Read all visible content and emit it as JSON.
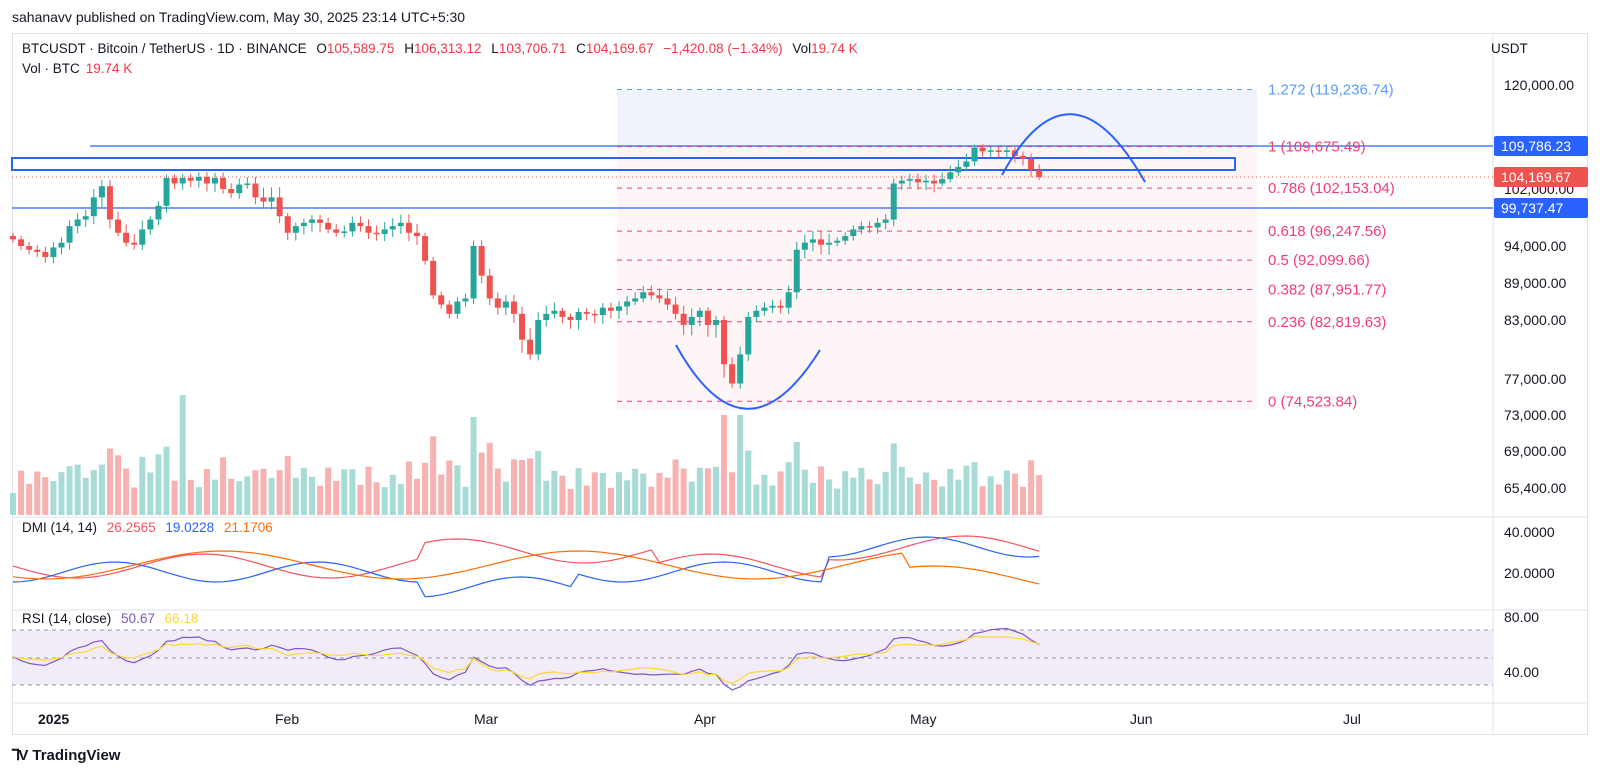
{
  "publisher": "sahanavv published on TradingView.com, May 30, 2025 23:14 UTC+5:30",
  "header": {
    "symbol": "BTCUSDT · Bitcoin / TetherUS · 1D · BINANCE",
    "o_label": "O",
    "o": "105,589.75",
    "h_label": "H",
    "h": "106,313.12",
    "l_label": "L",
    "l": "103,706.71",
    "c_label": "C",
    "c": "104,169.67",
    "change": "−1,420.08 (−1.34%)",
    "vol_label": "Vol",
    "vol": "19.74 K",
    "vol_line_label": "Vol · BTC",
    "vol_line_value": "19.74 K",
    "currency": "USDT"
  },
  "dmi": {
    "label": "DMI (14, 14)",
    "v1": "26.2565",
    "v2": "19.0228",
    "v3": "21.1706"
  },
  "rsi": {
    "label": "RSI (14, close)",
    "v1": "50.67",
    "v2": "66.18"
  },
  "brand": "TradingView",
  "colors": {
    "up": "#26a69a",
    "down": "#ef5350",
    "fib": "#f23d75",
    "fib_top": "#5b9cf6",
    "line_blue": "#2962ff",
    "dmi_pos": "#f7525f",
    "dmi_neg": "#2962ff",
    "dmi_adx": "#ff6d00",
    "rsi": "#7e57c2",
    "rsi_ma": "#fdd835"
  },
  "chart_data": {
    "type": "candlestick",
    "x_axis_labels": [
      "2025",
      "Feb",
      "Mar",
      "Apr",
      "May",
      "Jun",
      "Jul"
    ],
    "y_axis_labels": [
      "120,000.00",
      "102,000.00",
      "94,000.00",
      "89,000.00",
      "83,000.00",
      "77,000.00",
      "73,000.00",
      "69,000.00",
      "65,400.00"
    ],
    "price_badges": [
      {
        "value": "109,786.23",
        "kind": "line"
      },
      {
        "value": "104,169.67",
        "kind": "last"
      },
      {
        "value": "99,737.47",
        "kind": "line"
      }
    ],
    "horizontal_lines": [
      109786.23,
      99737.47
    ],
    "resistance_zone": [
      104600,
      107000
    ],
    "fib_levels": [
      {
        "label": "1.272 (119,236.74)",
        "price": 119236.74
      },
      {
        "label": "1 (109,675.49)",
        "price": 109675.49
      },
      {
        "label": "0.786 (102,153.04)",
        "price": 102153.04
      },
      {
        "label": "0.618 (96,247.56)",
        "price": 96247.56
      },
      {
        "label": "0.5 (92,099.66)",
        "price": 92099.66
      },
      {
        "label": "0.382 (87,951.77)",
        "price": 87951.77
      },
      {
        "label": "0.236 (82,819.63)",
        "price": 82819.63
      },
      {
        "label": "0 (74,523.84)",
        "price": 74523.84
      }
    ],
    "dmi_axis": [
      "40.0000",
      "20.0000"
    ],
    "rsi_axis": [
      "80.00",
      "40.00"
    ],
    "closes": [
      95000,
      94000,
      93500,
      93200,
      92500,
      93800,
      94500,
      97000,
      98000,
      98500,
      101000,
      102500,
      98000,
      96000,
      94500,
      94200,
      96500,
      98000,
      100000,
      104000,
      103000,
      104000,
      103500,
      104200,
      103000,
      104000,
      102000,
      101500,
      102800,
      103000,
      101000,
      100500,
      101000,
      98500,
      96000,
      97000,
      97500,
      98000,
      97500,
      96500,
      96000,
      96200,
      97500,
      97000,
      96000,
      95800,
      96500,
      97000,
      97500,
      96000,
      95500,
      92000,
      87000,
      85500,
      84000,
      86000,
      86500,
      94000,
      90000,
      86500,
      85000,
      86000,
      84000,
      81000,
      79500,
      83000,
      84000,
      84500,
      83500,
      83000,
      84300,
      84000,
      83800,
      85000,
      84500,
      85200,
      86000,
      86500,
      87500,
      87000,
      86500,
      85500,
      84000,
      82500,
      83500,
      84500,
      82500,
      83000,
      78500,
      76500,
      79500,
      83500,
      84500,
      85000,
      85300,
      85000,
      87500,
      93500,
      94500,
      95000,
      94200,
      94500,
      94800,
      95500,
      96500,
      97000,
      96800,
      97500,
      98000,
      103000,
      103500,
      103800,
      103200,
      103500,
      103000,
      103800,
      105000,
      106000,
      107000,
      109500,
      108800,
      109000,
      108700,
      109000,
      108000,
      107500,
      105500,
      104169
    ]
  }
}
